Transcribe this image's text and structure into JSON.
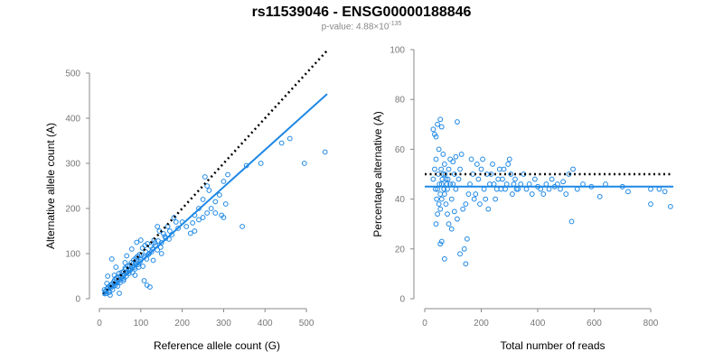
{
  "title": "rs11539046 - ENSG00000188846",
  "subtitle": {
    "prefix": "p-value: ",
    "mantissa": "4.88",
    "times": "×",
    "base": "10",
    "exponent": "-135"
  },
  "colors": {
    "points": "#1e88e5",
    "fit": "#1e88e5",
    "reference": "#000000"
  },
  "chart_data": [
    {
      "type": "scatter",
      "xlabel": "Reference allele count (G)",
      "ylabel": "Alternative allele count (A)",
      "xlim": [
        0,
        550
      ],
      "ylim": [
        0,
        500
      ],
      "xticks": [
        0,
        100,
        200,
        300,
        400,
        500
      ],
      "yticks": [
        0,
        100,
        200,
        300,
        400,
        500
      ],
      "reference_line": {
        "style": "dotted",
        "slope": 1,
        "intercept": 0
      },
      "fit_line": {
        "style": "solid",
        "slope": 0.825,
        "intercept": 0
      },
      "points": [
        [
          13,
          11
        ],
        [
          16,
          18
        ],
        [
          19,
          22
        ],
        [
          22,
          17
        ],
        [
          25,
          27
        ],
        [
          28,
          24
        ],
        [
          31,
          33
        ],
        [
          34,
          28
        ],
        [
          37,
          42
        ],
        [
          40,
          37
        ],
        [
          43,
          35
        ],
        [
          46,
          48
        ],
        [
          49,
          41
        ],
        [
          52,
          50
        ],
        [
          55,
          46
        ],
        [
          58,
          60
        ],
        [
          61,
          54
        ],
        [
          64,
          66
        ],
        [
          67,
          58
        ],
        [
          70,
          64
        ],
        [
          73,
          74
        ],
        [
          76,
          66
        ],
        [
          79,
          72
        ],
        [
          82,
          78
        ],
        [
          85,
          70
        ],
        [
          88,
          90
        ],
        [
          91,
          84
        ],
        [
          94,
          76
        ],
        [
          97,
          98
        ],
        [
          100,
          86
        ],
        [
          104,
          112
        ],
        [
          108,
          92
        ],
        [
          112,
          104
        ],
        [
          116,
          122
        ],
        [
          120,
          100
        ],
        [
          124,
          116
        ],
        [
          128,
          110
        ],
        [
          132,
          130
        ],
        [
          136,
          118
        ],
        [
          140,
          108
        ],
        [
          145,
          150
        ],
        [
          150,
          124
        ],
        [
          155,
          144
        ],
        [
          160,
          134
        ],
        [
          165,
          160
        ],
        [
          170,
          150
        ],
        [
          175,
          142
        ],
        [
          180,
          180
        ],
        [
          185,
          170
        ],
        [
          190,
          156
        ],
        [
          20,
          50
        ],
        [
          30,
          88
        ],
        [
          40,
          70
        ],
        [
          58,
          40
        ],
        [
          66,
          95
        ],
        [
          78,
          110
        ],
        [
          90,
          125
        ],
        [
          108,
          40
        ],
        [
          115,
          30
        ],
        [
          122,
          26
        ],
        [
          130,
          85
        ],
        [
          140,
          160
        ],
        [
          150,
          100
        ],
        [
          100,
          130
        ],
        [
          86,
          52
        ],
        [
          62,
          80
        ],
        [
          48,
          12
        ],
        [
          26,
          8
        ],
        [
          18,
          34
        ],
        [
          36,
          52
        ],
        [
          200,
          170
        ],
        [
          210,
          160
        ],
        [
          220,
          145
        ],
        [
          230,
          185
        ],
        [
          240,
          200
        ],
        [
          250,
          180
        ],
        [
          255,
          270
        ],
        [
          260,
          250
        ],
        [
          265,
          240
        ],
        [
          270,
          200
        ],
        [
          280,
          215
        ],
        [
          290,
          230
        ],
        [
          300,
          260
        ],
        [
          310,
          275
        ],
        [
          250,
          220
        ],
        [
          240,
          175
        ],
        [
          280,
          190
        ],
        [
          230,
          150
        ],
        [
          225,
          168
        ],
        [
          295,
          185
        ],
        [
          300,
          180
        ],
        [
          305,
          210
        ],
        [
          355,
          295
        ],
        [
          390,
          300
        ],
        [
          345,
          160
        ],
        [
          440,
          345
        ],
        [
          460,
          355
        ],
        [
          495,
          300
        ],
        [
          545,
          325
        ],
        [
          260,
          190
        ],
        [
          12,
          20
        ],
        [
          14,
          16
        ],
        [
          17,
          12
        ],
        [
          21,
          26
        ],
        [
          24,
          14
        ],
        [
          27,
          30
        ],
        [
          32,
          20
        ],
        [
          35,
          38
        ],
        [
          38,
          30
        ],
        [
          41,
          46
        ],
        [
          44,
          28
        ],
        [
          47,
          56
        ],
        [
          50,
          36
        ],
        [
          53,
          58
        ],
        [
          56,
          52
        ],
        [
          59,
          44
        ],
        [
          62,
          68
        ],
        [
          65,
          50
        ],
        [
          68,
          72
        ],
        [
          71,
          56
        ],
        [
          74,
          62
        ],
        [
          77,
          80
        ],
        [
          80,
          58
        ],
        [
          83,
          86
        ],
        [
          86,
          66
        ],
        [
          89,
          78
        ],
        [
          92,
          94
        ],
        [
          95,
          70
        ],
        [
          98,
          82
        ],
        [
          102,
          96
        ],
        [
          105,
          72
        ],
        [
          110,
          118
        ],
        [
          114,
          88
        ],
        [
          118,
          98
        ],
        [
          126,
          104
        ],
        [
          134,
          124
        ],
        [
          142,
          128
        ],
        [
          148,
          114
        ],
        [
          158,
          138
        ],
        [
          168,
          132
        ]
      ]
    },
    {
      "type": "scatter",
      "xlabel": "Total number of reads",
      "ylabel": "Percentage alternative (A)",
      "xlim": [
        0,
        880
      ],
      "ylim": [
        0,
        100
      ],
      "xticks": [
        0,
        200,
        400,
        600,
        800
      ],
      "yticks": [
        0,
        20,
        40,
        60,
        80,
        100
      ],
      "reference_line": {
        "style": "dotted",
        "y": 50
      },
      "fit_line": {
        "style": "solid",
        "y": 45
      },
      "points": [
        [
          30,
          68
        ],
        [
          35,
          66
        ],
        [
          40,
          65
        ],
        [
          45,
          70
        ],
        [
          55,
          72
        ],
        [
          60,
          69
        ],
        [
          115,
          71
        ],
        [
          130,
          58
        ],
        [
          140,
          20
        ],
        [
          125,
          18
        ],
        [
          145,
          14
        ],
        [
          150,
          24
        ],
        [
          70,
          16
        ],
        [
          55,
          22
        ],
        [
          60,
          23
        ],
        [
          40,
          30
        ],
        [
          45,
          34
        ],
        [
          50,
          38
        ],
        [
          55,
          42
        ],
        [
          60,
          46
        ],
        [
          65,
          50
        ],
        [
          70,
          54
        ],
        [
          75,
          48
        ],
        [
          80,
          44
        ],
        [
          85,
          52
        ],
        [
          90,
          56
        ],
        [
          95,
          40
        ],
        [
          100,
          46
        ],
        [
          105,
          50
        ],
        [
          110,
          44
        ],
        [
          30,
          48
        ],
        [
          35,
          52
        ],
        [
          40,
          56
        ],
        [
          45,
          44
        ],
        [
          50,
          60
        ],
        [
          55,
          36
        ],
        [
          60,
          40
        ],
        [
          65,
          58
        ],
        [
          70,
          42
        ],
        [
          75,
          38
        ],
        [
          80,
          34
        ],
        [
          85,
          30
        ],
        [
          90,
          46
        ],
        [
          95,
          28
        ],
        [
          100,
          55
        ],
        [
          105,
          35
        ],
        [
          110,
          57
        ],
        [
          115,
          32
        ],
        [
          120,
          48
        ],
        [
          125,
          52
        ],
        [
          160,
          46
        ],
        [
          170,
          50
        ],
        [
          180,
          42
        ],
        [
          190,
          48
        ],
        [
          200,
          52
        ],
        [
          210,
          44
        ],
        [
          220,
          50
        ],
        [
          230,
          46
        ],
        [
          240,
          54
        ],
        [
          250,
          40
        ],
        [
          260,
          48
        ],
        [
          270,
          44
        ],
        [
          280,
          52
        ],
        [
          290,
          46
        ],
        [
          300,
          56
        ],
        [
          310,
          42
        ],
        [
          320,
          48
        ],
        [
          330,
          44
        ],
        [
          340,
          46
        ],
        [
          350,
          50
        ],
        [
          360,
          44
        ],
        [
          370,
          46
        ],
        [
          380,
          42
        ],
        [
          390,
          48
        ],
        [
          400,
          45
        ],
        [
          410,
          44
        ],
        [
          420,
          42
        ],
        [
          430,
          46
        ],
        [
          440,
          44
        ],
        [
          450,
          48
        ],
        [
          460,
          45
        ],
        [
          470,
          46
        ],
        [
          480,
          44
        ],
        [
          490,
          47
        ],
        [
          500,
          42
        ],
        [
          510,
          50
        ],
        [
          520,
          31
        ],
        [
          525,
          52
        ],
        [
          540,
          44
        ],
        [
          560,
          46
        ],
        [
          590,
          45
        ],
        [
          640,
          46
        ],
        [
          700,
          45
        ],
        [
          720,
          43
        ],
        [
          800,
          44
        ],
        [
          800,
          38
        ],
        [
          830,
          44
        ],
        [
          870,
          37
        ],
        [
          850,
          43
        ],
        [
          620,
          41
        ],
        [
          135,
          36
        ],
        [
          145,
          38
        ],
        [
          155,
          42
        ],
        [
          165,
          56
        ],
        [
          175,
          40
        ],
        [
          185,
          54
        ],
        [
          195,
          38
        ],
        [
          205,
          56
        ],
        [
          215,
          40
        ],
        [
          225,
          36
        ],
        [
          235,
          50
        ],
        [
          245,
          46
        ],
        [
          255,
          44
        ],
        [
          265,
          52
        ],
        [
          275,
          48
        ],
        [
          285,
          44
        ],
        [
          295,
          54
        ],
        [
          305,
          50
        ],
        [
          315,
          46
        ],
        [
          325,
          44
        ],
        [
          38,
          44
        ],
        [
          42,
          40
        ],
        [
          48,
          50
        ],
        [
          52,
          46
        ],
        [
          58,
          52
        ],
        [
          62,
          48
        ],
        [
          68,
          44
        ],
        [
          72,
          50
        ],
        [
          78,
          46
        ],
        [
          82,
          48
        ]
      ]
    }
  ]
}
